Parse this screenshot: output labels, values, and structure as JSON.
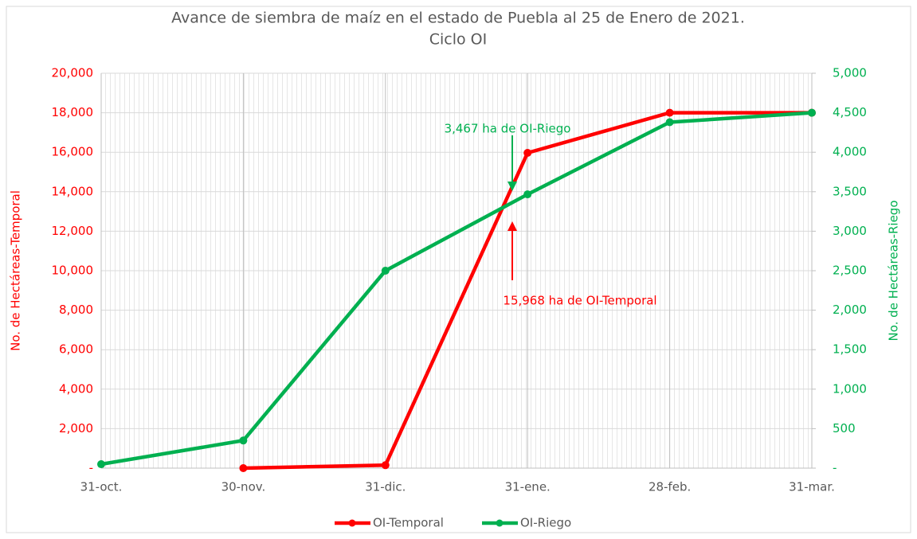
{
  "chart_data": {
    "type": "line",
    "title": "Avance de siembra de maíz en el estado de Puebla al 25 de Enero de 2021.",
    "subtitle": "Ciclo OI",
    "y_label": "No. de Hectáreas-Temporal",
    "y2_label": "No. de Hectáreas-Riego",
    "categories": [
      "31-oct.",
      "30-nov.",
      "31-dic.",
      "31-ene.",
      "28-feb.",
      "31-mar."
    ],
    "series": [
      {
        "name": "OI-Temporal",
        "color": "#ff0000",
        "values": [
          null,
          0,
          150,
          15968,
          18000,
          18000
        ]
      },
      {
        "name": "OI-Riego",
        "color": "#00b050",
        "axis": "y2",
        "values": [
          50,
          350,
          2500,
          3467,
          4380,
          4500
        ]
      }
    ],
    "ylim": [
      0,
      20000
    ],
    "yticks": [
      {
        "value": 0,
        "label": "-"
      },
      {
        "value": 2000,
        "label": "2,000"
      },
      {
        "value": 4000,
        "label": "4,000"
      },
      {
        "value": 6000,
        "label": "6,000"
      },
      {
        "value": 8000,
        "label": "8,000"
      },
      {
        "value": 10000,
        "label": "10,000"
      },
      {
        "value": 12000,
        "label": "12,000"
      },
      {
        "value": 14000,
        "label": "14,000"
      },
      {
        "value": 16000,
        "label": "16,000"
      },
      {
        "value": 18000,
        "label": "18,000"
      },
      {
        "value": 20000,
        "label": "20,000"
      }
    ],
    "y2lim": [
      0,
      5000
    ],
    "y2ticks": [
      {
        "value": 0,
        "label": "-"
      },
      500,
      {
        "value": 1000,
        "label": "1,000"
      },
      {
        "value": 1500,
        "label": "1,500"
      },
      {
        "value": 2000,
        "label": "2,000"
      },
      {
        "value": 2500,
        "label": "2,500"
      },
      {
        "value": 3000,
        "label": "3,000"
      },
      {
        "value": 3500,
        "label": "3,500"
      },
      {
        "value": 4000,
        "label": "4,000"
      },
      {
        "value": 4500,
        "label": "4,500"
      },
      {
        "value": 5000,
        "label": "5,000"
      }
    ],
    "annotations": [
      "3,467  ha de OI-Riego",
      "15,968  ha de OI-Temporal"
    ],
    "grid": true,
    "legend": "bottom"
  }
}
